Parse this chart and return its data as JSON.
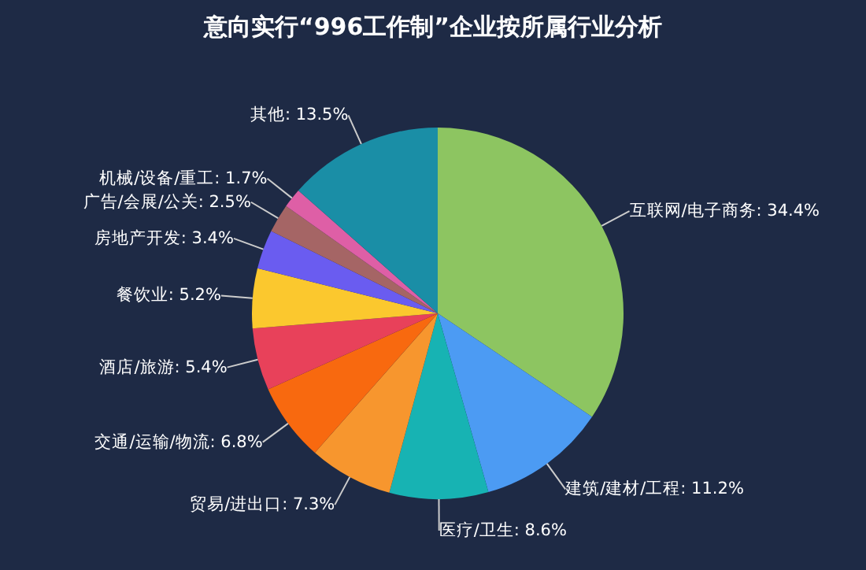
{
  "chart_data": {
    "type": "pie",
    "title": "意向实行“996工作制”企业按所属行业分析",
    "categories": [
      "互联网/电子商务",
      "建筑/建材/工程",
      "医疗/卫生",
      "贸易/进出口",
      "交通/运输/物流",
      "酒店/旅游",
      "餐饮业",
      "房地产开发",
      "广告/会展/公关",
      "机械/设备/重工",
      "其他"
    ],
    "values": [
      34.4,
      11.2,
      8.6,
      7.3,
      6.8,
      5.4,
      5.2,
      3.4,
      2.5,
      1.7,
      13.5
    ],
    "value_labels": [
      "34.4%",
      "11.2%",
      "8.6%",
      "7.3%",
      "6.8%",
      "5.4%",
      "5.2%",
      "3.4%",
      "2.5%",
      "1.7%",
      "13.5%"
    ],
    "colors": [
      "#8dc561",
      "#4c9bf3",
      "#17b3b3",
      "#f7962e",
      "#f8690f",
      "#e8415a",
      "#fbc82e",
      "#6a5cf0",
      "#a56565",
      "#de5fa6",
      "#1a8ea6"
    ]
  }
}
